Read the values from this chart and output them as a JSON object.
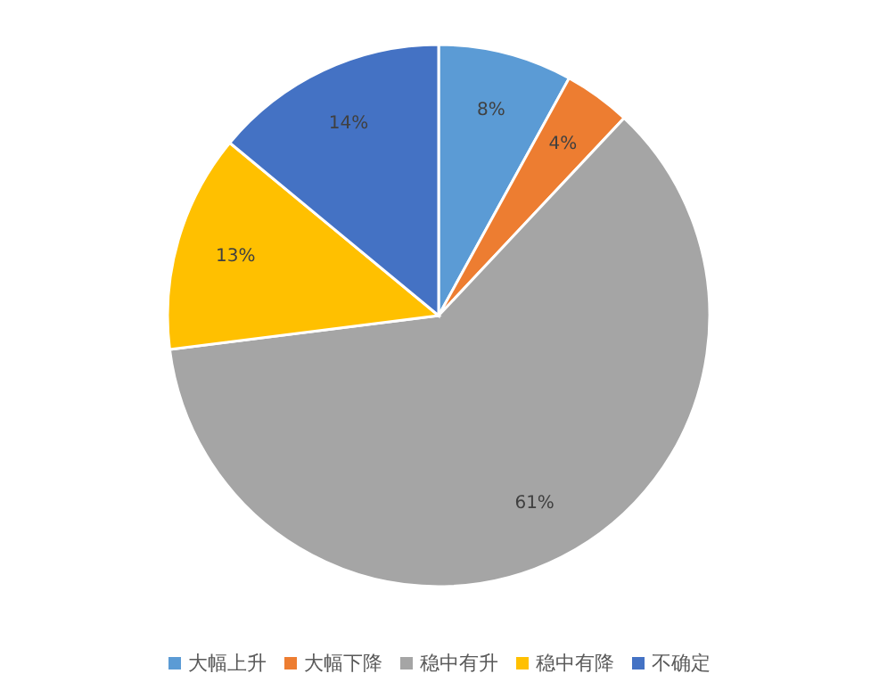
{
  "chart_data": {
    "type": "pie",
    "categories": [
      "大幅上升",
      "大幅下降",
      "稳中有升",
      "稳中有降",
      "不确定"
    ],
    "values": [
      8,
      4,
      61,
      13,
      14
    ],
    "colors": [
      "#5b9bd5",
      "#ed7d31",
      "#a5a5a5",
      "#ffc000",
      "#4472c4"
    ],
    "value_labels": [
      "8%",
      "4%",
      "61%",
      "13%",
      "14%"
    ],
    "legend": "bottom"
  }
}
